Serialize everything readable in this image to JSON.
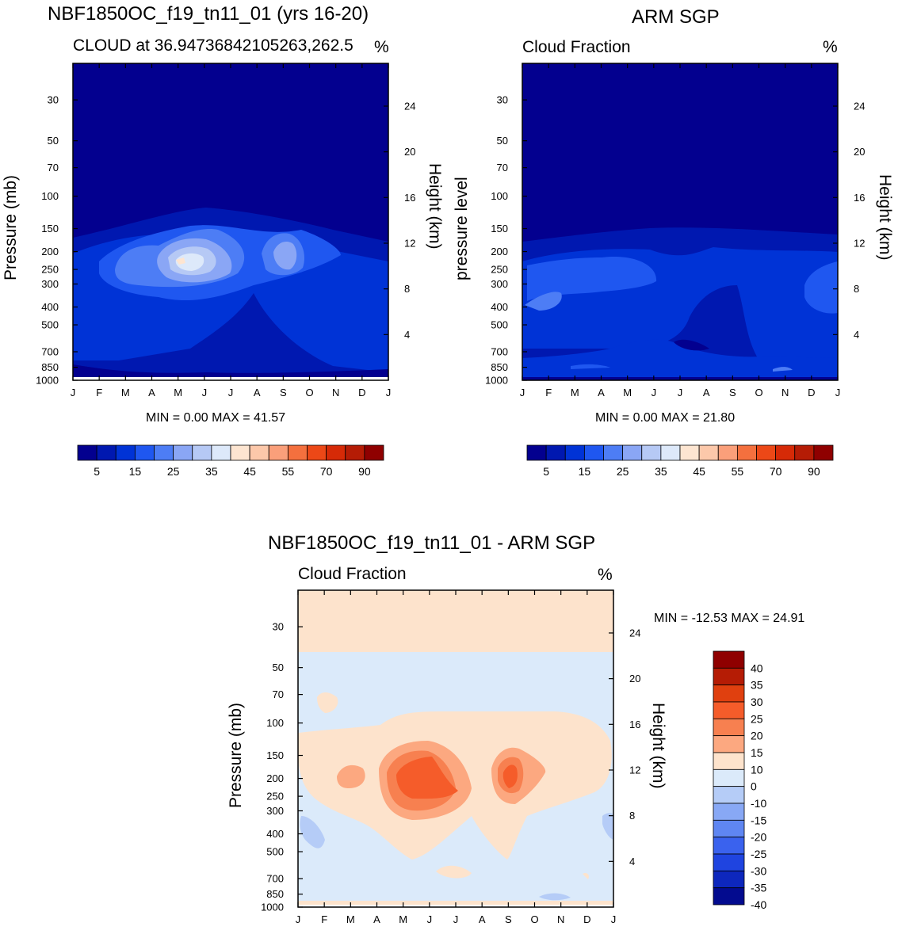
{
  "chart_data": [
    {
      "id": "model",
      "type": "contour",
      "title": "NBF1850OC_f19_tn11_01 (yrs 16-20)",
      "subtitle_left": "CLOUD at 36.94736842105263,262.5",
      "subtitle_right": "%",
      "ylabel": "Pressure (mb)",
      "ylabel_right": "Height (km)",
      "months": [
        "J",
        "F",
        "M",
        "A",
        "M",
        "J",
        "J",
        "A",
        "S",
        "O",
        "N",
        "D",
        "J"
      ],
      "pressure_ticks": [
        "30",
        "50",
        "70",
        "100",
        "150",
        "200",
        "250",
        "300",
        "400",
        "500",
        "700",
        "850",
        "1000"
      ],
      "height_ticks": [
        "24",
        "20",
        "16",
        "12",
        "8",
        "4"
      ],
      "stats": "MIN =   0.00 MAX =  41.57",
      "min": 0.0,
      "max": 41.57,
      "colorbar_labels": [
        "5",
        "15",
        "25",
        "35",
        "45",
        "55",
        "70",
        "90"
      ],
      "colorbar_colors": [
        "#03008f",
        "#0018b0",
        "#0033d6",
        "#1f57f0",
        "#4d7df5",
        "#8aa6f5",
        "#b6c9f5",
        "#dde9fa",
        "#fde5d1",
        "#fcc8aa",
        "#fa9f7a",
        "#f4703e",
        "#ec4817",
        "#d62a07",
        "#b51c05",
        "#8f0000"
      ]
    },
    {
      "id": "obs",
      "type": "contour",
      "title": "ARM SGP",
      "subtitle_left": "Cloud Fraction",
      "subtitle_right": "%",
      "ylabel": "pressure level",
      "ylabel_right": "Height (km)",
      "months": [
        "J",
        "F",
        "M",
        "A",
        "M",
        "J",
        "J",
        "A",
        "S",
        "O",
        "N",
        "D",
        "J"
      ],
      "pressure_ticks": [
        "30",
        "50",
        "70",
        "100",
        "150",
        "200",
        "250",
        "300",
        "400",
        "500",
        "700",
        "850",
        "1000"
      ],
      "height_ticks": [
        "24",
        "20",
        "16",
        "12",
        "8",
        "4"
      ],
      "stats": "MIN =   0.00 MAX =  21.80",
      "min": 0.0,
      "max": 21.8,
      "colorbar_labels": [
        "5",
        "15",
        "25",
        "35",
        "45",
        "55",
        "70",
        "90"
      ],
      "colorbar_colors": [
        "#03008f",
        "#0018b0",
        "#0033d6",
        "#1f57f0",
        "#4d7df5",
        "#8aa6f5",
        "#b6c9f5",
        "#dde9fa",
        "#fde5d1",
        "#fcc8aa",
        "#fa9f7a",
        "#f4703e",
        "#ec4817",
        "#d62a07",
        "#b51c05",
        "#8f0000"
      ]
    },
    {
      "id": "diff",
      "type": "contour",
      "title": "NBF1850OC_f19_tn11_01 - ARM SGP",
      "subtitle_left": "Cloud Fraction",
      "subtitle_right": "%",
      "ylabel": "Pressure (mb)",
      "ylabel_right": "Height (km)",
      "months": [
        "J",
        "F",
        "M",
        "A",
        "M",
        "J",
        "J",
        "A",
        "S",
        "O",
        "N",
        "D",
        "J"
      ],
      "pressure_ticks": [
        "30",
        "50",
        "70",
        "100",
        "150",
        "200",
        "250",
        "300",
        "400",
        "500",
        "700",
        "850",
        "1000"
      ],
      "height_ticks": [
        "24",
        "20",
        "16",
        "12",
        "8",
        "4"
      ],
      "stats": "MIN = -12.53 MAX =  24.91",
      "min": -12.53,
      "max": 24.91,
      "colorbar_labels": [
        "40",
        "35",
        "30",
        "25",
        "20",
        "15",
        "10",
        "0",
        "-10",
        "-15",
        "-20",
        "-25",
        "-30",
        "-35",
        "-40"
      ],
      "colorbar_colors": [
        "#8f0000",
        "#b51c05",
        "#e0400f",
        "#f55c2a",
        "#f78050",
        "#fca880",
        "#fde3cc",
        "#dbeafa",
        "#b5ccf7",
        "#88a8f5",
        "#5f86f2",
        "#3a62ee",
        "#1f44e0",
        "#0d27bd",
        "#030b8f"
      ]
    }
  ]
}
